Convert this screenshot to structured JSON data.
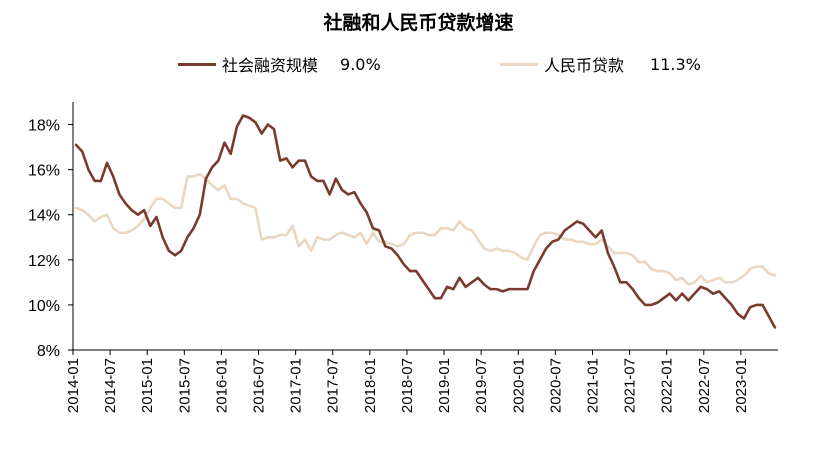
{
  "chart_data": {
    "type": "line",
    "title": "社融和人民币贷款增速",
    "xlabel": "",
    "ylabel": "",
    "ylim": [
      8,
      19
    ],
    "yticks": [
      "8%",
      "10%",
      "12%",
      "14%",
      "16%",
      "18%"
    ],
    "xticks": [
      "2014-01",
      "2014-07",
      "2015-01",
      "2015-07",
      "2016-01",
      "2016-07",
      "2017-01",
      "2017-07",
      "2018-01",
      "2018-07",
      "2019-01",
      "2019-07",
      "2020-01",
      "2020-07",
      "2021-01",
      "2021-07",
      "2022-01",
      "2022-07",
      "2023-01"
    ],
    "x_start": "2014-01",
    "x_end": "2023-05",
    "grid": false,
    "legend_position": "top",
    "series": [
      {
        "name": "社会融资规模",
        "legend_value": "9.0%",
        "color": "#7B3A2E",
        "values": [
          17.1,
          16.8,
          16.0,
          15.5,
          15.5,
          16.3,
          15.7,
          14.9,
          14.5,
          14.2,
          14.0,
          14.2,
          13.5,
          13.9,
          13.0,
          12.4,
          12.2,
          12.4,
          13.0,
          13.4,
          14.0,
          15.6,
          16.1,
          16.4,
          17.2,
          16.7,
          17.9,
          18.4,
          18.3,
          18.1,
          17.6,
          18.0,
          17.8,
          16.4,
          16.5,
          16.1,
          16.4,
          16.4,
          15.7,
          15.5,
          15.5,
          14.9,
          15.6,
          15.1,
          14.9,
          15.0,
          14.5,
          14.1,
          13.4,
          13.3,
          12.6,
          12.5,
          12.2,
          11.8,
          11.5,
          11.5,
          11.1,
          10.7,
          10.3,
          10.3,
          10.8,
          10.7,
          11.2,
          10.8,
          11.0,
          11.2,
          10.9,
          10.7,
          10.7,
          10.6,
          10.7,
          10.7,
          10.7,
          10.7,
          11.5,
          12.0,
          12.5,
          12.8,
          12.9,
          13.3,
          13.5,
          13.7,
          13.6,
          13.3,
          13.0,
          13.3,
          12.3,
          11.7,
          11.0,
          11.0,
          10.7,
          10.3,
          10.0,
          10.0,
          10.1,
          10.3,
          10.5,
          10.2,
          10.5,
          10.2,
          10.5,
          10.8,
          10.7,
          10.5,
          10.6,
          10.3,
          10.0,
          9.6,
          9.4,
          9.9,
          10.0,
          10.0,
          9.5,
          9.0
        ]
      },
      {
        "name": "人民币贷款",
        "legend_value": "11.3%",
        "color": "#EAD7C2",
        "values": [
          14.3,
          14.2,
          14.0,
          13.7,
          13.9,
          14.0,
          13.4,
          13.2,
          13.2,
          13.3,
          13.5,
          13.8,
          14.3,
          14.7,
          14.7,
          14.5,
          14.3,
          14.3,
          15.7,
          15.7,
          15.8,
          15.6,
          15.3,
          15.1,
          15.3,
          14.7,
          14.7,
          14.5,
          14.4,
          14.3,
          12.9,
          13.0,
          13.0,
          13.1,
          13.1,
          13.5,
          12.6,
          12.9,
          12.4,
          13.0,
          12.9,
          12.9,
          13.1,
          13.2,
          13.1,
          13.0,
          13.2,
          12.7,
          13.2,
          12.8,
          12.8,
          12.7,
          12.6,
          12.7,
          13.1,
          13.2,
          13.2,
          13.1,
          13.1,
          13.4,
          13.4,
          13.3,
          13.7,
          13.4,
          13.3,
          12.9,
          12.5,
          12.4,
          12.5,
          12.4,
          12.4,
          12.3,
          12.1,
          12.0,
          12.6,
          13.1,
          13.2,
          13.2,
          13.1,
          12.9,
          12.9,
          12.8,
          12.8,
          12.7,
          12.7,
          12.9,
          12.6,
          12.3,
          12.3,
          12.3,
          12.2,
          11.9,
          11.9,
          11.6,
          11.5,
          11.5,
          11.4,
          11.1,
          11.2,
          10.9,
          11.0,
          11.3,
          11.0,
          11.1,
          11.2,
          11.0,
          11.0,
          11.1,
          11.3,
          11.6,
          11.7,
          11.7,
          11.4,
          11.3
        ]
      }
    ]
  }
}
